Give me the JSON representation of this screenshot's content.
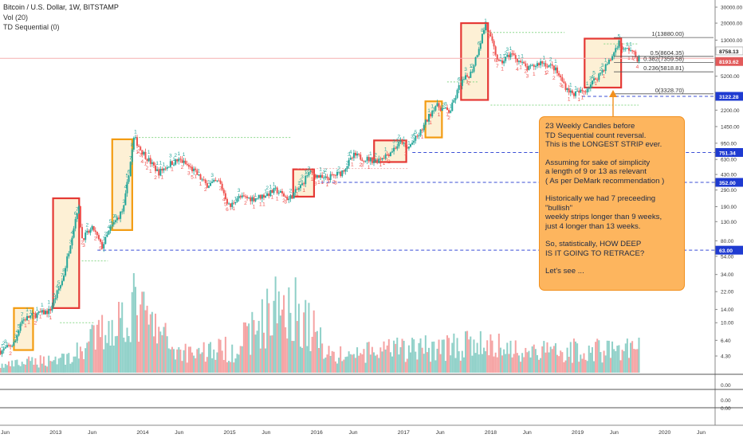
{
  "legend": {
    "title": "Bitcoin / U.S. Dollar, 1W, BITSTAMP",
    "volume": "Vol (20)",
    "indicator": "TD Sequential (0)"
  },
  "annotation": {
    "lines": [
      "23 Weekly Candles before\nTD Sequential count reversal.\nThis is the LONGEST STRIP ever.",
      "Assuming for sake of simplicity\na length  of 9 or 13 as relevant\n( As per DeMark recommendation )",
      "Historically we had 7 preceeding \"bullish\"\nweekly strips longer than 9 weeks,\njust 4 longer than 13 weeks.",
      "So, statistically, HOW DEEP\nIS IT GOING TO RETRACE?",
      "Let's see ..."
    ],
    "box_color": "#fdb55e"
  },
  "chart_data": {
    "type": "candlestick",
    "symbol": "BTCUSD",
    "exchange": "BITSTAMP",
    "interval": "1W",
    "price_scale": "log",
    "price_ticks": [
      2.9,
      4.3,
      6.4,
      10.0,
      14.0,
      22.0,
      34.0,
      54.0,
      80.0,
      130.0,
      190.0,
      290.0,
      430.0,
      630.0,
      950.0,
      1450.0,
      2200.0,
      3300.0,
      5200.0,
      8000.0,
      13000.0,
      20000.0,
      30000.0
    ],
    "time_ticks": [
      "Jun",
      "2013",
      "Jun",
      "2014",
      "Jun",
      "2015",
      "Jun",
      "2016",
      "Jun",
      "2017",
      "Jun",
      "2018",
      "Jun",
      "2019",
      "Jun",
      "2020",
      "Jun"
    ],
    "price_path": [
      {
        "t": 2012.4,
        "p": 4.9
      },
      {
        "t": 2012.55,
        "p": 6.0
      },
      {
        "t": 2012.62,
        "p": 10.5
      },
      {
        "t": 2012.75,
        "p": 12.0
      },
      {
        "t": 2012.95,
        "p": 13.5
      },
      {
        "t": 2013.1,
        "p": 30
      },
      {
        "t": 2013.28,
        "p": 200
      },
      {
        "t": 2013.32,
        "p": 85
      },
      {
        "t": 2013.45,
        "p": 110
      },
      {
        "t": 2013.55,
        "p": 68
      },
      {
        "t": 2013.65,
        "p": 110
      },
      {
        "t": 2013.8,
        "p": 180
      },
      {
        "t": 2013.92,
        "p": 1100
      },
      {
        "t": 2014.0,
        "p": 800
      },
      {
        "t": 2014.1,
        "p": 600
      },
      {
        "t": 2014.2,
        "p": 450
      },
      {
        "t": 2014.35,
        "p": 580
      },
      {
        "t": 2014.45,
        "p": 620
      },
      {
        "t": 2014.6,
        "p": 480
      },
      {
        "t": 2014.75,
        "p": 330
      },
      {
        "t": 2014.9,
        "p": 360
      },
      {
        "t": 2015.02,
        "p": 185
      },
      {
        "t": 2015.1,
        "p": 240
      },
      {
        "t": 2015.3,
        "p": 235
      },
      {
        "t": 2015.45,
        "p": 260
      },
      {
        "t": 2015.55,
        "p": 290
      },
      {
        "t": 2015.7,
        "p": 230
      },
      {
        "t": 2015.85,
        "p": 330
      },
      {
        "t": 2015.92,
        "p": 450
      },
      {
        "t": 2016.0,
        "p": 430
      },
      {
        "t": 2016.1,
        "p": 380
      },
      {
        "t": 2016.3,
        "p": 450
      },
      {
        "t": 2016.45,
        "p": 700
      },
      {
        "t": 2016.55,
        "p": 650
      },
      {
        "t": 2016.7,
        "p": 610
      },
      {
        "t": 2016.85,
        "p": 740
      },
      {
        "t": 2017.0,
        "p": 1000
      },
      {
        "t": 2017.05,
        "p": 800
      },
      {
        "t": 2017.2,
        "p": 1200
      },
      {
        "t": 2017.38,
        "p": 2500
      },
      {
        "t": 2017.55,
        "p": 2100
      },
      {
        "t": 2017.67,
        "p": 4300
      },
      {
        "t": 2017.8,
        "p": 5800
      },
      {
        "t": 2017.96,
        "p": 19500
      },
      {
        "t": 2018.05,
        "p": 11000
      },
      {
        "t": 2018.12,
        "p": 7000
      },
      {
        "t": 2018.25,
        "p": 9300
      },
      {
        "t": 2018.45,
        "p": 6200
      },
      {
        "t": 2018.6,
        "p": 7500
      },
      {
        "t": 2018.75,
        "p": 6400
      },
      {
        "t": 2018.88,
        "p": 4000
      },
      {
        "t": 2018.96,
        "p": 3300
      },
      {
        "t": 2019.1,
        "p": 3600
      },
      {
        "t": 2019.25,
        "p": 5200
      },
      {
        "t": 2019.4,
        "p": 8000
      },
      {
        "t": 2019.49,
        "p": 12500
      },
      {
        "t": 2019.55,
        "p": 10000
      },
      {
        "t": 2019.62,
        "p": 10500
      },
      {
        "t": 2019.7,
        "p": 8200
      }
    ],
    "volume_path": [
      {
        "t": 2012.4,
        "v": 3
      },
      {
        "t": 2013.2,
        "v": 7
      },
      {
        "t": 2013.9,
        "v": 28
      },
      {
        "t": 2014.4,
        "v": 9
      },
      {
        "t": 2015.05,
        "v": 10
      },
      {
        "t": 2015.65,
        "v": 32
      },
      {
        "t": 2016.2,
        "v": 7
      },
      {
        "t": 2017.0,
        "v": 10
      },
      {
        "t": 2017.9,
        "v": 12
      },
      {
        "t": 2018.5,
        "v": 9
      },
      {
        "t": 2019.5,
        "v": 10
      }
    ],
    "boxes": [
      {
        "color": "orange",
        "t0": 2012.52,
        "t1": 2012.74,
        "p0": 5.0,
        "p1": 14.5
      },
      {
        "color": "red",
        "t0": 2012.97,
        "t1": 2013.27,
        "p0": 14.5,
        "p1": 235
      },
      {
        "color": "orange",
        "t0": 2013.65,
        "t1": 2013.88,
        "p0": 105,
        "p1": 1050
      },
      {
        "color": "red",
        "t0": 2015.73,
        "t1": 2015.97,
        "p0": 245,
        "p1": 490
      },
      {
        "color": "red",
        "t0": 2016.66,
        "t1": 2017.03,
        "p0": 590,
        "p1": 1020
      },
      {
        "color": "orange",
        "t0": 2017.25,
        "t1": 2017.44,
        "p0": 1100,
        "p1": 2750
      },
      {
        "color": "red",
        "t0": 2017.66,
        "t1": 2017.97,
        "p0": 2850,
        "p1": 20000
      },
      {
        "color": "red",
        "t0": 2019.08,
        "t1": 2019.5,
        "p0": 3900,
        "p1": 13500
      }
    ],
    "fibonacci": [
      {
        "label": "1(13880.00)",
        "price": 13880.0
      },
      {
        "label": "0.5(8604.35)",
        "price": 8604.35
      },
      {
        "label": "0.382(7359.58)",
        "price": 7359.58
      },
      {
        "label": "0.236(5818.81)",
        "price": 5818.81
      },
      {
        "label": "0(3328.70)",
        "price": 3328.7
      }
    ],
    "horizontal_levels": [
      {
        "label": "3122.28",
        "price": 3122.28,
        "style": "dashed-blue"
      },
      {
        "label": "751.34",
        "price": 751.34,
        "style": "dashed-blue"
      },
      {
        "label": "352.00",
        "price": 352.0,
        "style": "dashed-blue"
      },
      {
        "label": "63.00",
        "price": 63.0,
        "style": "dashed-blue"
      }
    ],
    "price_labels": [
      {
        "label": "8758.13",
        "price": 8758.13,
        "color": "#ffffff",
        "text_color": "#222222"
      },
      {
        "label": "8193.62",
        "price": 8193.62,
        "color": "#e25a5a",
        "text_color": "#ffffff"
      },
      {
        "label": "3122.28",
        "price": 3122.28,
        "color": "#1f3bd1",
        "text_color": "#ffffff"
      },
      {
        "label": "751.34",
        "price": 751.34,
        "color": "#1f3bd1",
        "text_color": "#ffffff"
      },
      {
        "label": "352.00",
        "price": 352.0,
        "color": "#1f3bd1",
        "text_color": "#ffffff"
      },
      {
        "label": "63.00",
        "price": 63.0,
        "color": "#1f3bd1",
        "text_color": "#ffffff"
      }
    ],
    "sub_panels": [
      {
        "ticks": [
          "0.00"
        ]
      },
      {
        "ticks": [
          "0.00",
          "0.00"
        ]
      }
    ],
    "colors": {
      "up": "#26a69a",
      "down": "#ef5350",
      "vol_up": "#8fd0c8",
      "vol_down": "#f5a3a3",
      "td_up": "#26a69a",
      "td_down": "#ef5350",
      "box_red": "#e53935",
      "box_orange": "#f39c12",
      "box_fill": "#fdf0d5"
    }
  }
}
